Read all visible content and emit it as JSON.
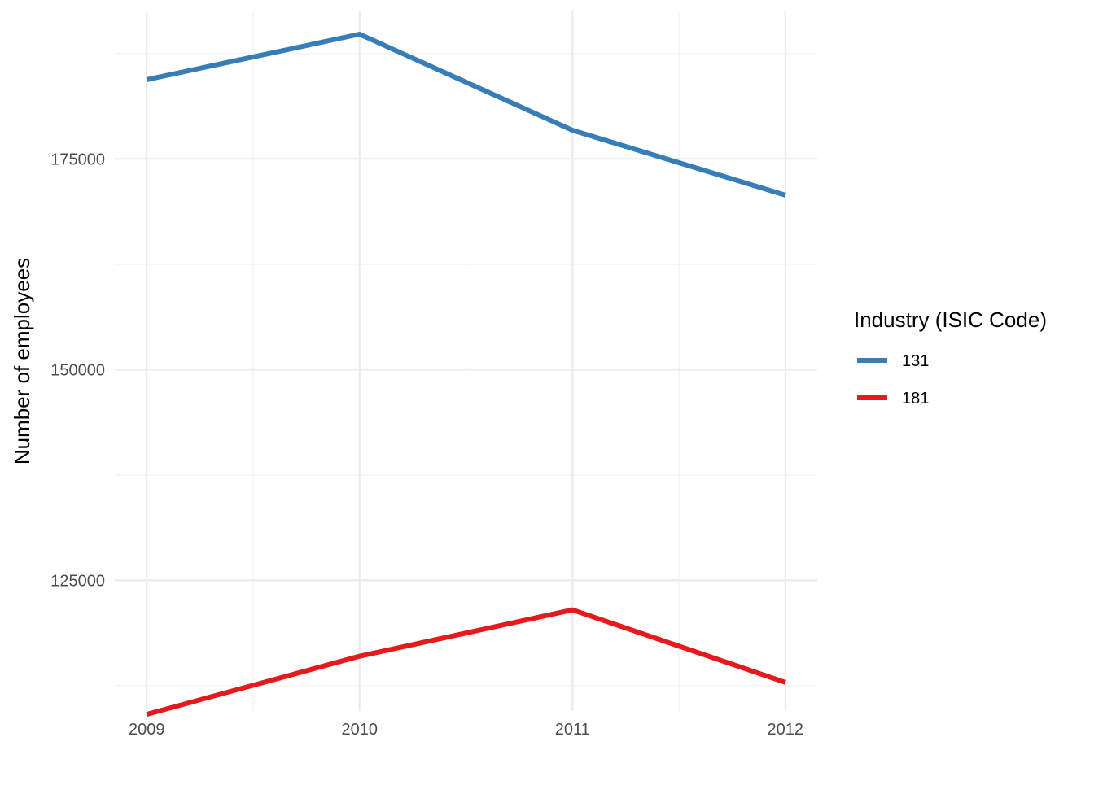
{
  "chart_data": {
    "type": "line",
    "x": [
      2009,
      2010,
      2011,
      2012
    ],
    "xticks": [
      "2009",
      "2010",
      "2011",
      "2012"
    ],
    "xlim": [
      2008.85,
      2012.15
    ],
    "ylim": [
      109500,
      192500
    ],
    "yticks": [
      125000,
      150000,
      175000
    ],
    "ytick_labels": [
      "125000",
      "150000",
      "175000"
    ],
    "ylabel": "Number of employees",
    "xlabel": "",
    "grid": true,
    "legend": {
      "title": "Industry (ISIC Code)",
      "position": "right"
    },
    "series": [
      {
        "name": "131",
        "color": "#377eb8",
        "values": [
          184400,
          189800,
          178400,
          170700
        ]
      },
      {
        "name": "181",
        "color": "#e41a1c",
        "values": [
          109100,
          116000,
          121500,
          112900
        ]
      }
    ]
  }
}
